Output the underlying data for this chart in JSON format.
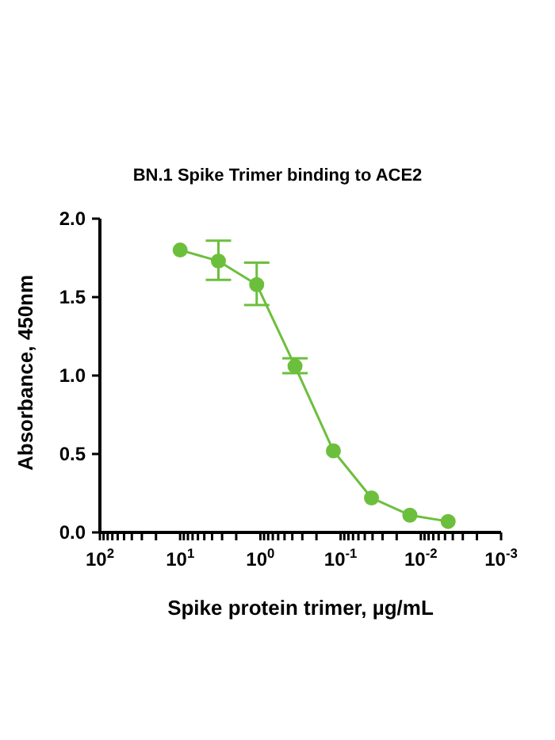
{
  "chart_data": {
    "type": "line",
    "title": "BN.1 Spike Trimer binding to ACE2",
    "xlabel": "Spike protein trimer, µg/mL",
    "ylabel": "Absorbance, 450nm",
    "log": "x",
    "marker": "circle",
    "line_style": "solid",
    "x": [
      10,
      3.333,
      1.111,
      0.37,
      0.123,
      0.0412,
      0.0137,
      0.00457
    ],
    "series": [
      {
        "color": "#6cbf3c",
        "values": [
          1.8,
          1.73,
          1.58,
          1.06,
          0.52,
          0.22,
          0.11,
          0.07
        ],
        "errors": [
          null,
          [
            1.61,
            1.86
          ],
          [
            1.45,
            1.72
          ],
          [
            1.015,
            1.11
          ],
          null,
          null,
          null,
          null
        ]
      }
    ],
    "xlim": [
      100,
      0.001
    ],
    "xticks": [
      {
        "value": 100,
        "label": "10$^{2}$"
      },
      {
        "value": 90,
        "label": null
      },
      {
        "value": 80,
        "label": null
      },
      {
        "value": 70,
        "label": null
      },
      {
        "value": 60,
        "label": null
      },
      {
        "value": 50,
        "label": null
      },
      {
        "value": 40,
        "label": null
      },
      {
        "value": 30,
        "label": null
      },
      {
        "value": 20,
        "label": null
      },
      {
        "value": 10,
        "label": "10$^{1}$"
      },
      {
        "value": 9,
        "label": null
      },
      {
        "value": 8,
        "label": null
      },
      {
        "value": 7,
        "label": null
      },
      {
        "value": 6,
        "label": null
      },
      {
        "value": 5,
        "label": null
      },
      {
        "value": 4,
        "label": null
      },
      {
        "value": 3,
        "label": null
      },
      {
        "value": 2,
        "label": null
      },
      {
        "value": 1,
        "label": "10$^{0}$"
      },
      {
        "value": 0.9,
        "label": null
      },
      {
        "value": 0.8,
        "label": null
      },
      {
        "value": 0.7,
        "label": null
      },
      {
        "value": 0.6,
        "label": null
      },
      {
        "value": 0.5,
        "label": null
      },
      {
        "value": 0.4,
        "label": null
      },
      {
        "value": 0.3,
        "label": null
      },
      {
        "value": 0.2,
        "label": null
      },
      {
        "value": 0.1,
        "label": "10$^{-1}$"
      },
      {
        "value": 0.09,
        "label": null
      },
      {
        "value": 0.08,
        "label": null
      },
      {
        "value": 0.07,
        "label": null
      },
      {
        "value": 0.06,
        "label": null
      },
      {
        "value": 0.05,
        "label": null
      },
      {
        "value": 0.04,
        "label": null
      },
      {
        "value": 0.03,
        "label": null
      },
      {
        "value": 0.02,
        "label": null
      },
      {
        "value": 0.01,
        "label": "10$^{-2}$"
      },
      {
        "value": 0.009,
        "label": null
      },
      {
        "value": 0.008,
        "label": null
      },
      {
        "value": 0.007,
        "label": null
      },
      {
        "value": 0.006,
        "label": null
      },
      {
        "value": 0.005,
        "label": null
      },
      {
        "value": 0.004,
        "label": null
      },
      {
        "value": 0.003,
        "label": null
      },
      {
        "value": 0.002,
        "label": null
      },
      {
        "value": 0.001,
        "label": "10$^{-3}$"
      }
    ],
    "ylim": [
      0,
      2
    ],
    "yticks": [
      {
        "value": 0,
        "label": "0.0"
      },
      {
        "value": 0.5,
        "label": "0.5"
      },
      {
        "value": 1,
        "label": "1.0"
      },
      {
        "value": 1.5,
        "label": "1.5"
      },
      {
        "value": 2,
        "label": "2.0"
      }
    ]
  }
}
